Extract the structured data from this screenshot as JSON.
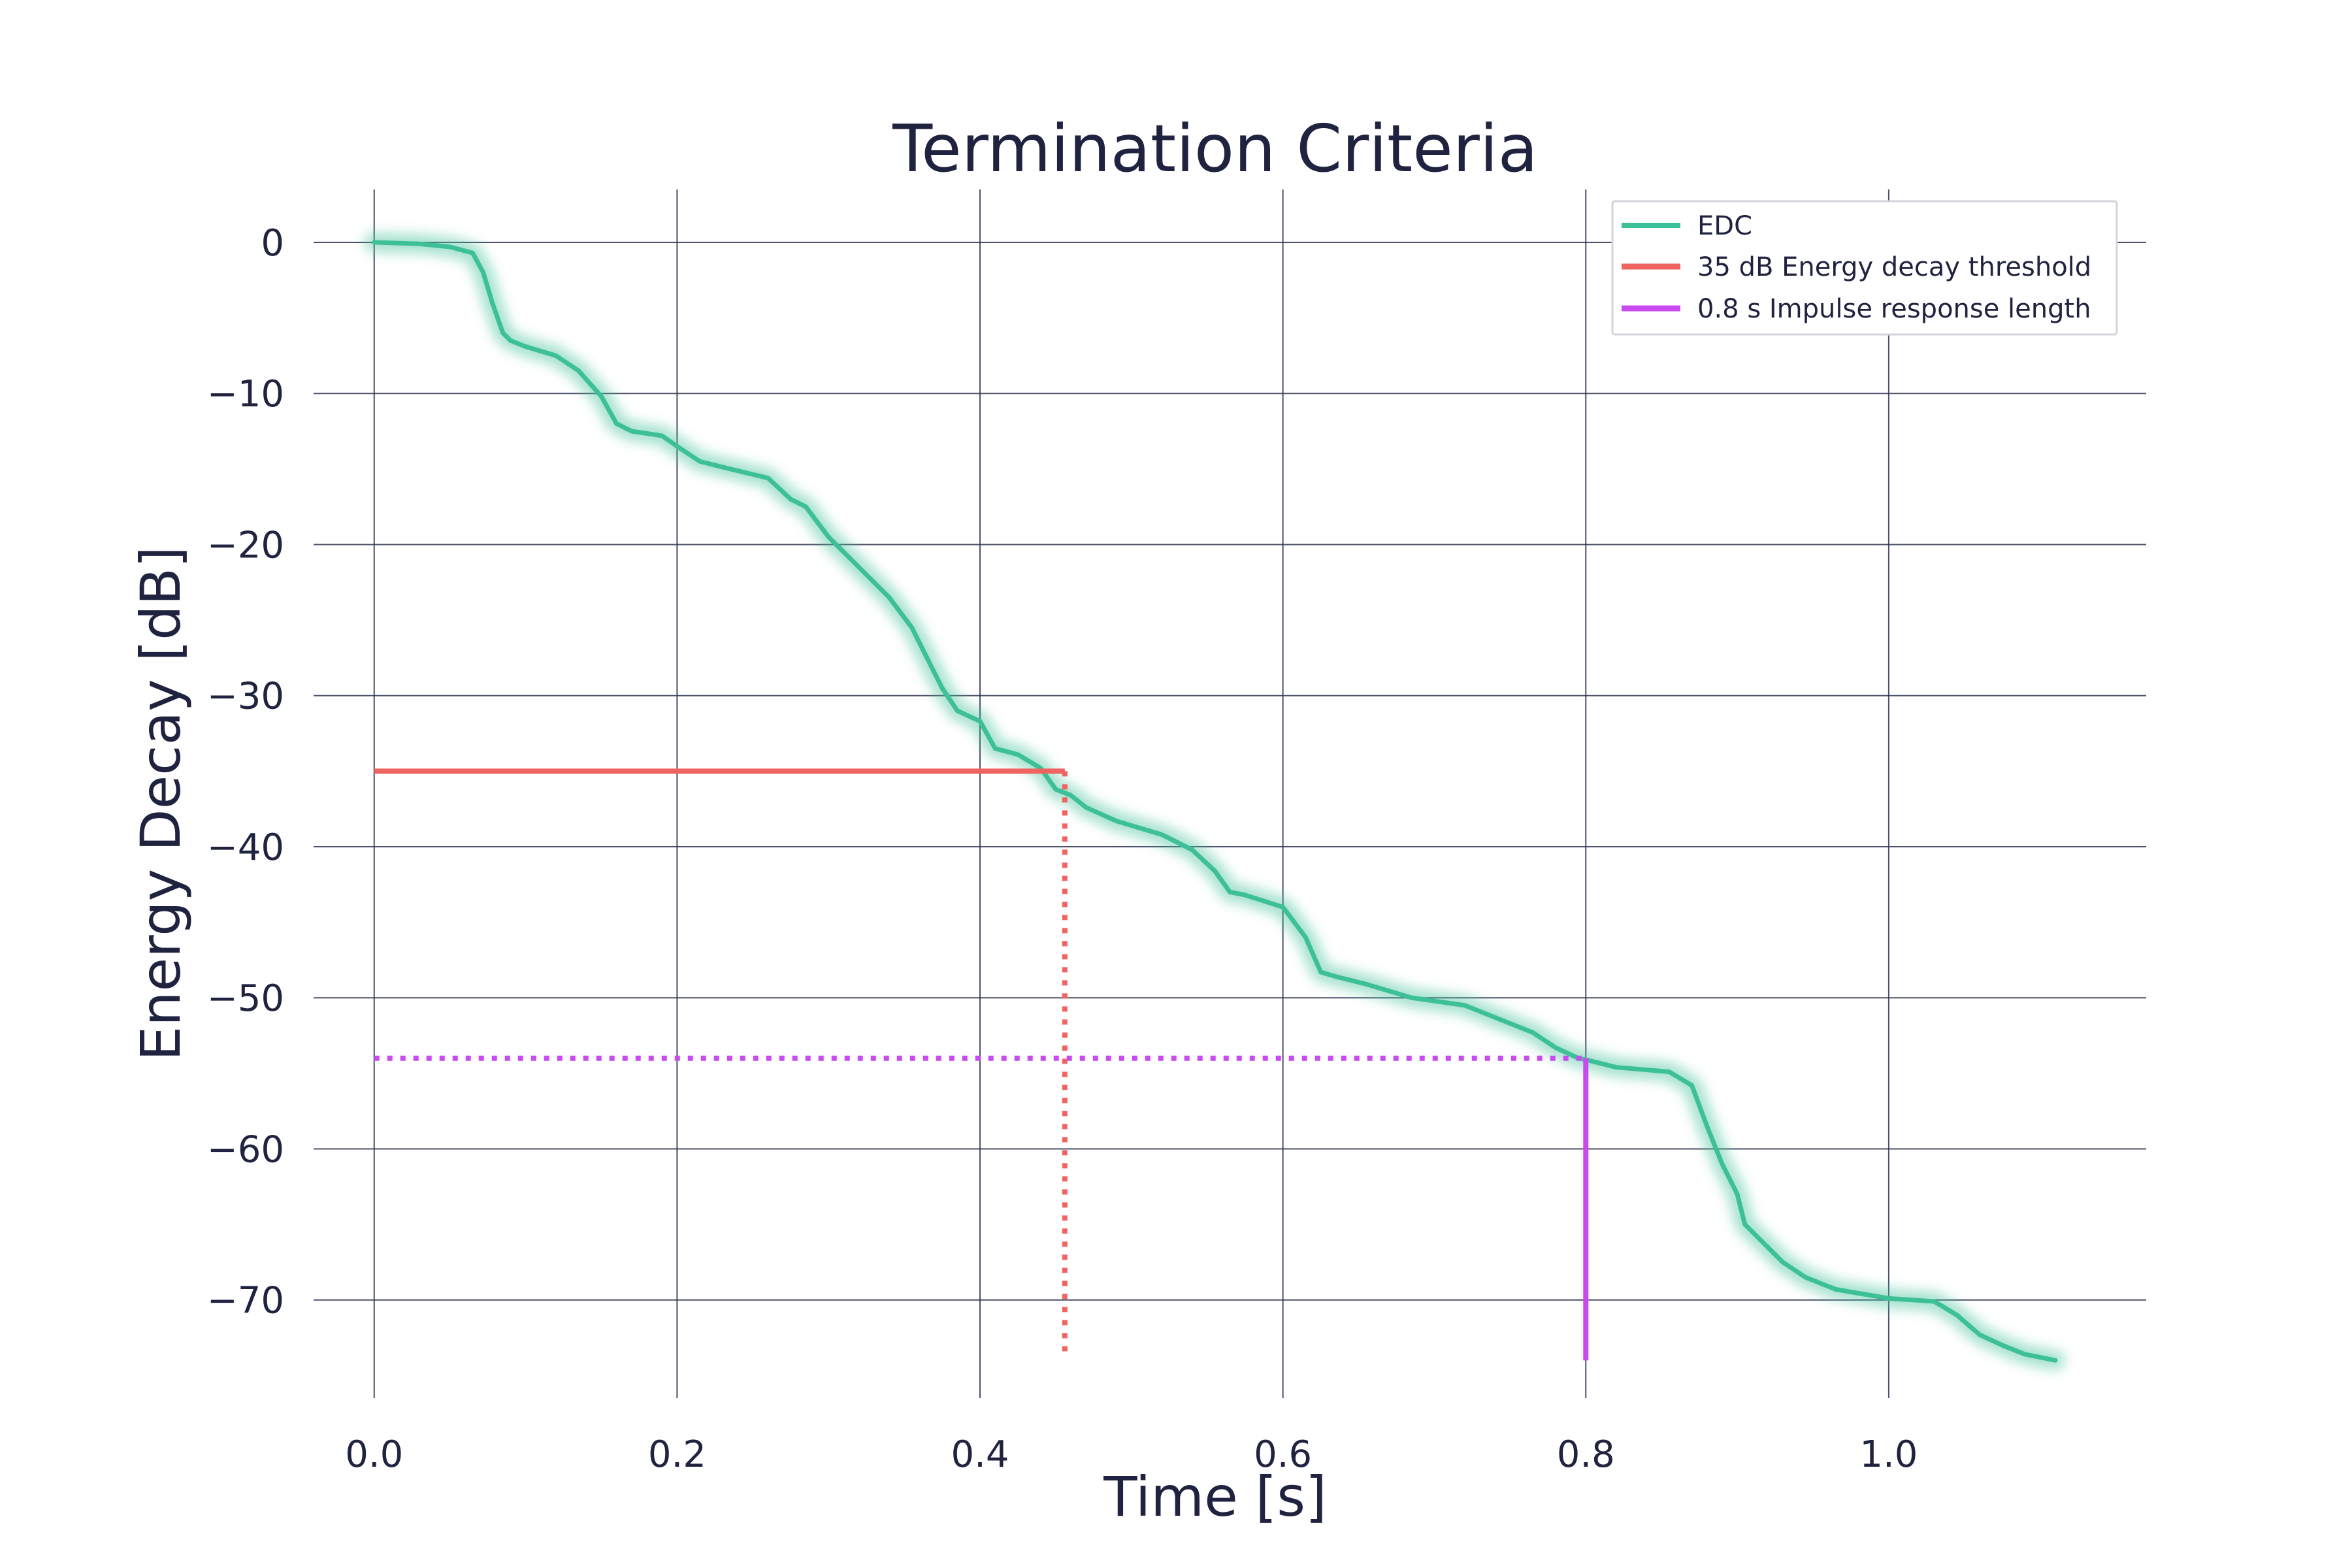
{
  "chart_data": {
    "type": "line",
    "title": "Termination Criteria",
    "xlabel": "Time [s]",
    "ylabel": "Energy Decay [dB]",
    "xlim": [
      -0.04,
      1.17
    ],
    "ylim": [
      -76.5,
      3.5
    ],
    "xticks": [
      0.0,
      0.2,
      0.4,
      0.6,
      0.8,
      1.0
    ],
    "xtick_labels": [
      "0.0",
      "0.2",
      "0.4",
      "0.6",
      "0.8",
      "1.0"
    ],
    "yticks": [
      0,
      -10,
      -20,
      -30,
      -40,
      -50,
      -60,
      -70
    ],
    "ytick_labels": [
      "0",
      "−10",
      "−20",
      "−30",
      "−40",
      "−50",
      "−60",
      "−70"
    ],
    "grid": true,
    "legend_position": "top-right",
    "series": [
      {
        "name": "EDC",
        "color": "#3dbf97",
        "style": "solid-glow",
        "x": [
          0.0,
          0.03,
          0.05,
          0.065,
          0.072,
          0.078,
          0.085,
          0.09,
          0.1,
          0.12,
          0.135,
          0.15,
          0.16,
          0.17,
          0.19,
          0.2,
          0.215,
          0.235,
          0.26,
          0.275,
          0.285,
          0.3,
          0.31,
          0.325,
          0.34,
          0.355,
          0.365,
          0.375,
          0.385,
          0.4,
          0.41,
          0.425,
          0.44,
          0.45,
          0.46,
          0.47,
          0.49,
          0.52,
          0.54,
          0.555,
          0.565,
          0.575,
          0.6,
          0.615,
          0.625,
          0.635,
          0.655,
          0.685,
          0.72,
          0.745,
          0.765,
          0.78,
          0.795,
          0.8,
          0.82,
          0.855,
          0.87,
          0.88,
          0.89,
          0.9,
          0.905,
          0.915,
          0.93,
          0.945,
          0.965,
          1.0,
          1.03,
          1.045,
          1.06,
          1.075,
          1.09,
          1.11
        ],
        "y": [
          0.0,
          -0.1,
          -0.3,
          -0.7,
          -2.0,
          -4.0,
          -6.0,
          -6.5,
          -6.9,
          -7.5,
          -8.5,
          -10.2,
          -12.0,
          -12.5,
          -12.8,
          -13.5,
          -14.5,
          -15.0,
          -15.6,
          -17.0,
          -17.5,
          -19.5,
          -20.5,
          -22.0,
          -23.5,
          -25.5,
          -27.5,
          -29.5,
          -31.0,
          -31.7,
          -33.5,
          -33.9,
          -34.8,
          -36.2,
          -36.6,
          -37.4,
          -38.3,
          -39.2,
          -40.2,
          -41.6,
          -43.0,
          -43.2,
          -44.0,
          -46.0,
          -48.3,
          -48.6,
          -49.1,
          -50.0,
          -50.5,
          -51.5,
          -52.3,
          -53.3,
          -54.0,
          -54.1,
          -54.6,
          -54.9,
          -55.8,
          -58.5,
          -61.0,
          -63.0,
          -65.0,
          -66.0,
          -67.5,
          -68.5,
          -69.3,
          -69.9,
          -70.1,
          -71.0,
          -72.3,
          -73.0,
          -73.6,
          -74.0
        ]
      },
      {
        "name": "35 dB Energy decay threshold",
        "color": "#ef6461",
        "style": "solid",
        "x": [
          0.0,
          0.456
        ],
        "y": [
          -35.0,
          -35.0
        ],
        "drop_line": {
          "x": 0.456,
          "y_from": -35.0,
          "y_to": -73.5,
          "style": "dotted"
        }
      },
      {
        "name": "0.8 s Impulse response length",
        "color": "#c94bf0",
        "style": "solid",
        "x": [
          0.8,
          0.8
        ],
        "y": [
          -54.0,
          -74.0
        ],
        "guide_line": {
          "y": -54.0,
          "x_from": 0.0,
          "x_to": 0.8,
          "style": "dotted"
        }
      }
    ]
  }
}
